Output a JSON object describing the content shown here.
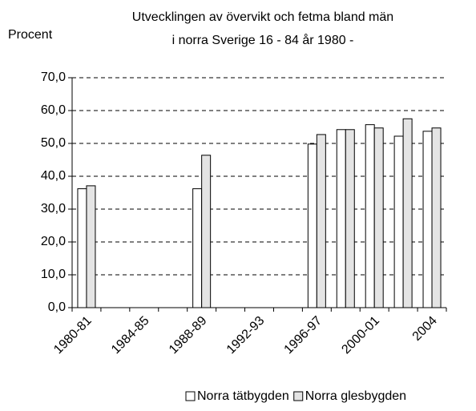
{
  "chart_data": {
    "type": "bar",
    "title": [
      "Utvecklingen av övervikt och fetma bland män",
      "i norra Sverige 16 - 84 år 1980 -"
    ],
    "y_label": "Procent",
    "categories": [
      "1980-81",
      null,
      "1984-85",
      null,
      "1988-89",
      null,
      "1992-93",
      null,
      "1996-97",
      null,
      "2000-01",
      null,
      "2004"
    ],
    "series": [
      {
        "name": "Norra tätbygden",
        "color": "#ffffff",
        "values": [
          36.2,
          null,
          null,
          null,
          36.2,
          null,
          null,
          null,
          49.8,
          54.2,
          55.7,
          52.2,
          53.7
        ]
      },
      {
        "name": "Norra glesbygden",
        "color": "#e4e4e4",
        "values": [
          37.1,
          null,
          null,
          null,
          46.4,
          null,
          null,
          null,
          52.7,
          54.2,
          54.7,
          57.5,
          54.7
        ]
      }
    ],
    "ylim": [
      0,
      70
    ],
    "yticks": [
      {
        "value": 0,
        "label": "0,0"
      },
      {
        "value": 10,
        "label": "10,0"
      },
      {
        "value": 20,
        "label": "20,0"
      },
      {
        "value": 30,
        "label": "30,0"
      },
      {
        "value": 40,
        "label": "40,0"
      },
      {
        "value": 50,
        "label": "50,0"
      },
      {
        "value": 60,
        "label": "60,0"
      },
      {
        "value": 70,
        "label": "70,0"
      }
    ],
    "grid": true,
    "legend": "bottom"
  }
}
